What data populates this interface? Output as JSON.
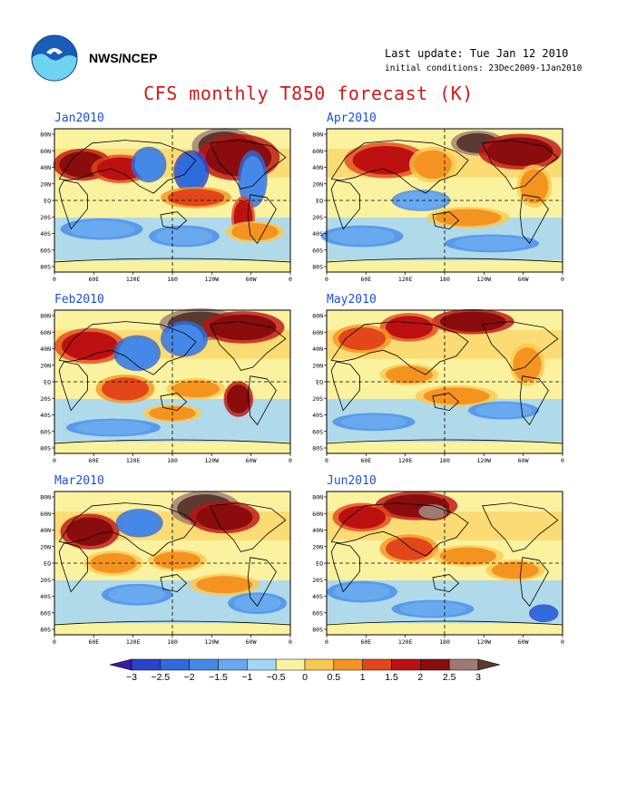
{
  "header": {
    "org": "NWS/NCEP",
    "last_update": "Last update: Tue Jan 12 2010",
    "initial_conditions": "initial conditions: 23Dec2009-1Jan2010",
    "title": "CFS monthly T850 forecast (K)"
  },
  "panels": [
    {
      "label": "Jan2010"
    },
    {
      "label": "Apr2010"
    },
    {
      "label": "Feb2010"
    },
    {
      "label": "May2010"
    },
    {
      "label": "Mar2010"
    },
    {
      "label": "Jun2010"
    }
  ],
  "lat_ticks": [
    "80N",
    "60N",
    "40N",
    "20N",
    "EQ",
    "20S",
    "40S",
    "60S",
    "80S"
  ],
  "lon_ticks": [
    "0",
    "60E",
    "120E",
    "180",
    "120W",
    "60W",
    "0"
  ],
  "colorbar": {
    "labels": [
      "-3",
      "-2.5",
      "-2",
      "-1.5",
      "-1",
      "-0.5",
      "0",
      "0.5",
      "1",
      "1.5",
      "2",
      "2.5",
      "3"
    ],
    "colors": [
      "#3a1c9e",
      "#2b43c9",
      "#2e6bdc",
      "#4489e8",
      "#68a9f0",
      "#a2d6f7",
      "#fbf2a0",
      "#fbc84f",
      "#f59320",
      "#e24619",
      "#bd1111",
      "#8b0c0c",
      "#9e7b72",
      "#5a3a30"
    ]
  }
}
